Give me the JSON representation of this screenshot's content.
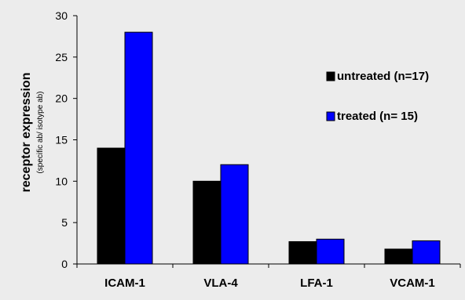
{
  "chart_data": {
    "type": "bar",
    "categories": [
      "ICAM-1",
      "VLA-4",
      "LFA-1",
      "VCAM-1"
    ],
    "series": [
      {
        "name": "untreated (n=17)",
        "color": "#000000",
        "values": [
          14,
          10,
          2.7,
          1.8
        ]
      },
      {
        "name": "treated (n= 15)",
        "color": "#0000ff",
        "values": [
          28,
          12,
          3.0,
          2.8
        ]
      }
    ],
    "title": "",
    "xlabel": "",
    "ylabel": "receptor expression",
    "ylabel_sub": "(specific ab/ isotype ab)",
    "ylim": [
      0,
      30
    ],
    "yticks": [
      0,
      5,
      10,
      15,
      20,
      25,
      30
    ],
    "grid": false,
    "legend_position": "right"
  }
}
